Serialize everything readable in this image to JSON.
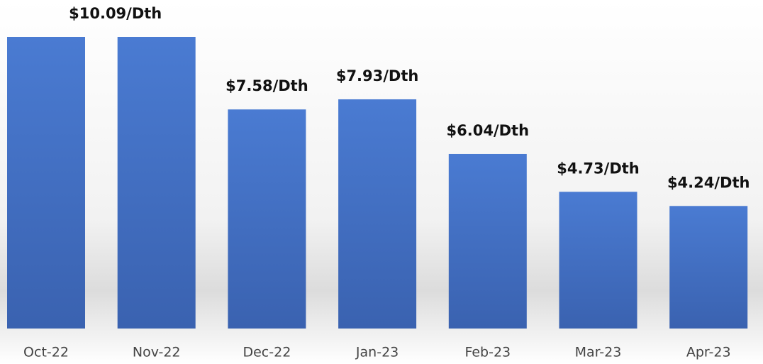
{
  "chart_data": {
    "type": "bar",
    "categories": [
      "Oct-22",
      "Nov-22",
      "Dec-22",
      "Jan-23",
      "Feb-23",
      "Mar-23",
      "Apr-23"
    ],
    "values": [
      10.09,
      10.09,
      7.58,
      7.93,
      6.04,
      4.73,
      4.24
    ],
    "value_labels": [
      null,
      "$10.09/Dth",
      "$7.58/Dth",
      "$7.93/Dth",
      "$6.04/Dth",
      "$4.73/Dth",
      "$4.24/Dth"
    ],
    "color": "#4472c4"
  }
}
